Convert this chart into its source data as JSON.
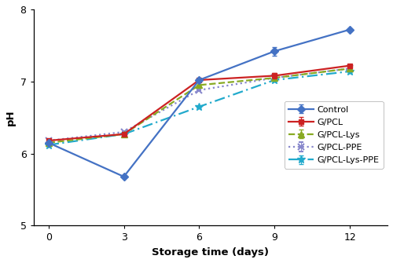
{
  "x": [
    0,
    3,
    6,
    9,
    12
  ],
  "control": [
    6.15,
    5.68,
    7.02,
    7.42,
    7.72
  ],
  "gpcl": [
    6.18,
    6.27,
    7.02,
    7.08,
    7.22
  ],
  "gpcl_lys": [
    6.15,
    6.27,
    6.95,
    7.05,
    7.18
  ],
  "gpcl_ppe": [
    6.18,
    6.3,
    6.88,
    7.05,
    7.18
  ],
  "gpcl_lys_ppe": [
    6.12,
    6.27,
    6.65,
    7.02,
    7.14
  ],
  "control_err": [
    0.0,
    0.0,
    0.0,
    0.06,
    0.0
  ],
  "gpcl_err": [
    0.0,
    0.0,
    0.0,
    0.04,
    0.0
  ],
  "gpcl_lys_err": [
    0.0,
    0.0,
    0.0,
    0.0,
    0.0
  ],
  "gpcl_ppe_err": [
    0.0,
    0.0,
    0.0,
    0.0,
    0.0
  ],
  "gpcl_lys_ppe_err": [
    0.0,
    0.0,
    0.0,
    0.0,
    0.0
  ],
  "control_color": "#4472C4",
  "gpcl_color": "#CC2222",
  "gpcl_lys_color": "#88AA22",
  "gpcl_ppe_color": "#8888CC",
  "gpcl_lys_ppe_color": "#22AACC",
  "xlabel": "Storage time (days)",
  "ylabel": "pH",
  "xlim": [
    -0.6,
    13.5
  ],
  "ylim": [
    5.0,
    8.0
  ],
  "yticks": [
    5,
    6,
    7,
    8
  ],
  "xticks": [
    0,
    3,
    6,
    9,
    12
  ],
  "legend_labels": [
    "Control",
    "G/PCL",
    "G/PCL-Lys",
    "G/PCL-PPE",
    "G/PCL-Lys-PPE"
  ]
}
